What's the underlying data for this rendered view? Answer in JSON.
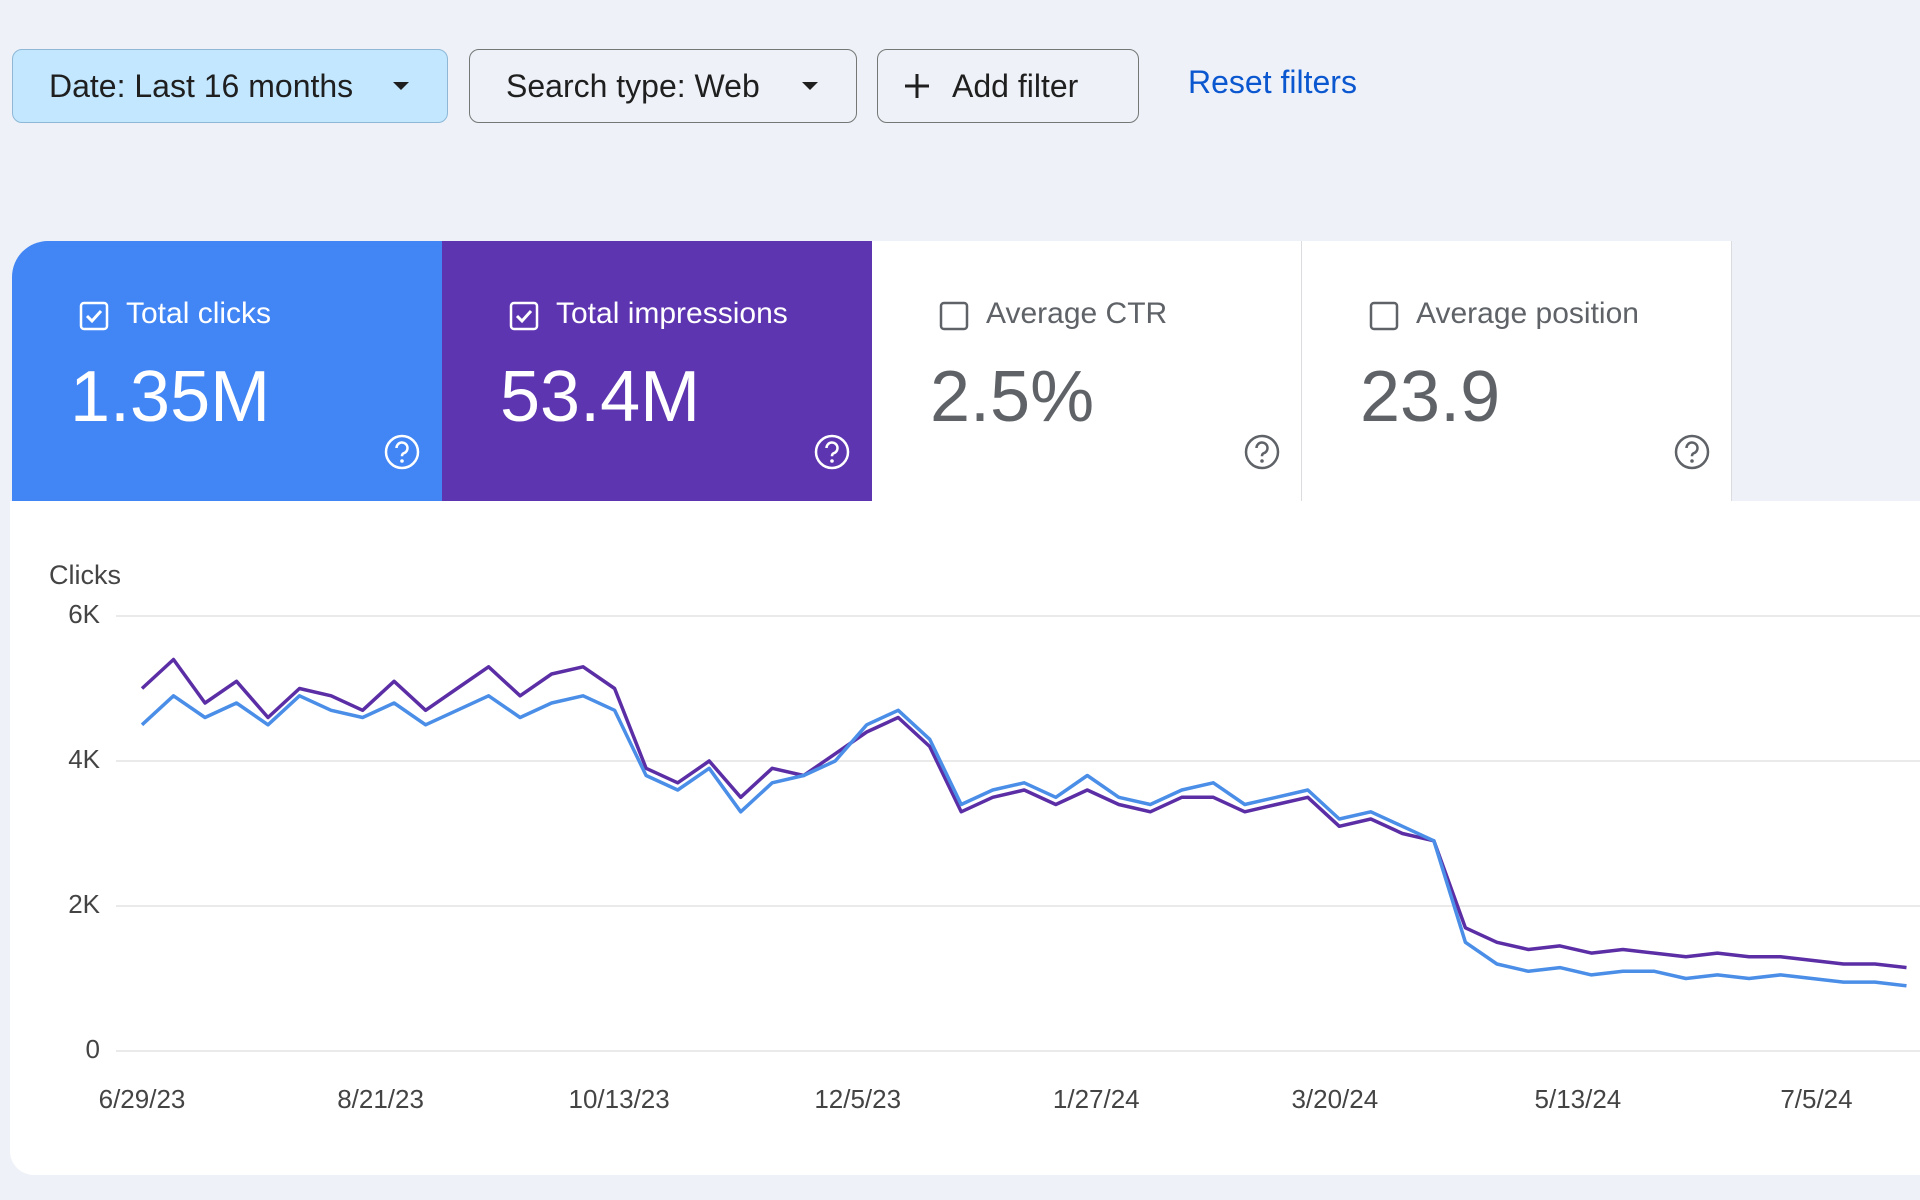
{
  "filters": {
    "date": "Date: Last 16 months",
    "search_type": "Search type: Web",
    "add_filter": "Add filter",
    "reset": "Reset filters"
  },
  "metrics": [
    {
      "label": "Total clicks",
      "value": "1.35M",
      "checked": true,
      "color": "#4285f4"
    },
    {
      "label": "Total impressions",
      "value": "53.4M",
      "checked": true,
      "color": "#5e35b1"
    },
    {
      "label": "Average CTR",
      "value": "2.5%",
      "checked": false
    },
    {
      "label": "Average position",
      "value": "23.9",
      "checked": false
    }
  ],
  "chart_data": {
    "type": "line",
    "y_label": "Clicks",
    "grid": true,
    "x": [
      "2023-06-29",
      "2023-07-06",
      "2023-07-13",
      "2023-07-20",
      "2023-07-27",
      "2023-08-03",
      "2023-08-10",
      "2023-08-17",
      "2023-08-24",
      "2023-08-31",
      "2023-09-07",
      "2023-09-14",
      "2023-09-21",
      "2023-09-28",
      "2023-10-05",
      "2023-10-12",
      "2023-10-19",
      "2023-10-26",
      "2023-11-02",
      "2023-11-09",
      "2023-11-16",
      "2023-11-23",
      "2023-11-30",
      "2023-12-07",
      "2023-12-14",
      "2023-12-21",
      "2023-12-28",
      "2024-01-04",
      "2024-01-11",
      "2024-01-18",
      "2024-01-25",
      "2024-02-01",
      "2024-02-08",
      "2024-02-15",
      "2024-02-22",
      "2024-02-29",
      "2024-03-07",
      "2024-03-14",
      "2024-03-21",
      "2024-03-28",
      "2024-04-04",
      "2024-04-11",
      "2024-04-18",
      "2024-04-25",
      "2024-05-02",
      "2024-05-09",
      "2024-05-16",
      "2024-05-23",
      "2024-05-30",
      "2024-06-06",
      "2024-06-13",
      "2024-06-20",
      "2024-06-27",
      "2024-07-04",
      "2024-07-11",
      "2024-07-18",
      "2024-07-25"
    ],
    "series": [
      {
        "color": "#5b2ea6",
        "values": [
          5000,
          5400,
          4800,
          5100,
          4600,
          5000,
          4900,
          4700,
          5100,
          4700,
          5000,
          5300,
          4900,
          5200,
          5300,
          5000,
          3900,
          3700,
          4000,
          3500,
          3900,
          3800,
          4100,
          4400,
          4600,
          4200,
          3300,
          3500,
          3600,
          3400,
          3600,
          3400,
          3300,
          3500,
          3500,
          3300,
          3400,
          3500,
          3100,
          3200,
          3000,
          2900,
          1700,
          1500,
          1400,
          1450,
          1350,
          1400,
          1350,
          1300,
          1350,
          1300,
          1300,
          1250,
          1200,
          1200,
          1150
        ]
      },
      {
        "color": "#4a8ee8",
        "values": [
          4500,
          4900,
          4600,
          4800,
          4500,
          4900,
          4700,
          4600,
          4800,
          4500,
          4700,
          4900,
          4600,
          4800,
          4900,
          4700,
          3800,
          3600,
          3900,
          3300,
          3700,
          3800,
          4000,
          4500,
          4700,
          4300,
          3400,
          3600,
          3700,
          3500,
          3800,
          3500,
          3400,
          3600,
          3700,
          3400,
          3500,
          3600,
          3200,
          3300,
          3100,
          2900,
          1500,
          1200,
          1100,
          1150,
          1050,
          1100,
          1100,
          1000,
          1050,
          1000,
          1050,
          1000,
          950,
          950,
          900
        ]
      }
    ],
    "xlim": [
      "2023-06-29",
      "2024-07-28"
    ],
    "xticks": [
      {
        "value": "2023-06-29",
        "label": "6/29/23"
      },
      {
        "value": "2023-08-21",
        "label": "8/21/23"
      },
      {
        "value": "2023-10-13",
        "label": "10/13/23"
      },
      {
        "value": "2023-12-05",
        "label": "12/5/23"
      },
      {
        "value": "2024-01-27",
        "label": "1/27/24"
      },
      {
        "value": "2024-03-20",
        "label": "3/20/24"
      },
      {
        "value": "2024-05-13",
        "label": "5/13/24"
      },
      {
        "value": "2024-07-05",
        "label": "7/5/24"
      }
    ],
    "ylim": [
      0,
      6000
    ],
    "yticks": [
      0,
      {
        "value": 2000,
        "label": "2K"
      },
      {
        "value": 4000,
        "label": "4K"
      },
      {
        "value": 6000,
        "label": "6K"
      }
    ]
  }
}
